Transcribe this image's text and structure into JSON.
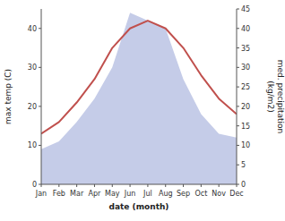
{
  "chart_data": {
    "type": "line",
    "categories": [
      "Jan",
      "Feb",
      "Mar",
      "Apr",
      "May",
      "Jun",
      "Jul",
      "Aug",
      "Sep",
      "Oct",
      "Nov",
      "Dec"
    ],
    "series": [
      {
        "type": "area",
        "color": "#c5cce8",
        "axis": "y2",
        "values": [
          9,
          11,
          16,
          22,
          30,
          44,
          42,
          40,
          27,
          18,
          13,
          12
        ]
      },
      {
        "type": "line",
        "color": "#c0504d",
        "values": [
          13,
          16,
          21,
          27,
          35,
          40,
          42,
          40,
          35,
          28,
          22,
          18
        ]
      }
    ],
    "xlabel": "date (month)",
    "ylabel": "max temp (C)",
    "y2label": "med. precipitation\n(kg/m2)",
    "ylim": [
      0,
      45
    ],
    "yticks": [
      0,
      10,
      20,
      30,
      40
    ],
    "y2lim": [
      0,
      45
    ],
    "y2ticks": [
      0,
      5,
      10,
      15,
      20,
      25,
      30,
      35,
      40,
      45
    ]
  }
}
